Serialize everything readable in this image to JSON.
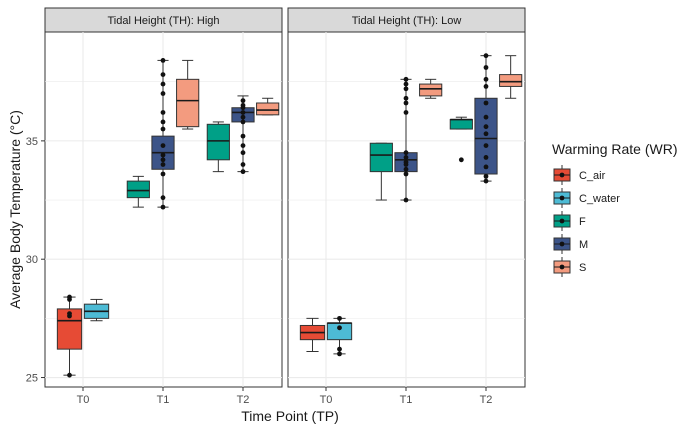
{
  "chart_data": {
    "type": "boxplot",
    "xlabel": "Time Point (TP)",
    "ylabel": "Average Body Temperature (°C)",
    "ylim": [
      24.6,
      39.6
    ],
    "yticks": [
      25,
      30,
      35
    ],
    "categories": [
      "T0",
      "T1",
      "T2"
    ],
    "legend": {
      "title": "Warming Rate (WR)",
      "position": "right",
      "items": [
        {
          "name": "C_air",
          "color": "#E64B35"
        },
        {
          "name": "C_water",
          "color": "#4DBBD5"
        },
        {
          "name": "F",
          "color": "#00A087"
        },
        {
          "name": "M",
          "color": "#3C5488"
        },
        {
          "name": "S",
          "color": "#F39B7F"
        }
      ]
    },
    "panels": [
      {
        "title": "Tidal Height (TH): High",
        "boxes": [
          {
            "category": "T0",
            "group": "C_air",
            "min": 25.1,
            "q1": 26.2,
            "median": 27.4,
            "q3": 27.9,
            "max": 28.4,
            "points": [
              25.1,
              27.6,
              27.7,
              28.3,
              28.4
            ]
          },
          {
            "category": "T0",
            "group": "C_water",
            "min": 27.4,
            "q1": 27.5,
            "median": 27.8,
            "q3": 28.1,
            "max": 28.3,
            "points": []
          },
          {
            "category": "T1",
            "group": "F",
            "min": 32.2,
            "q1": 32.6,
            "median": 32.9,
            "q3": 33.3,
            "max": 33.5,
            "points": []
          },
          {
            "category": "T1",
            "group": "M",
            "min": 32.2,
            "q1": 33.8,
            "median": 34.5,
            "q3": 35.2,
            "max": 38.4,
            "points": [
              32.2,
              32.6,
              33.6,
              34.0,
              34.2,
              34.4,
              34.8,
              35.5,
              35.8,
              36.2,
              37.0,
              37.4,
              37.8,
              38.4
            ]
          },
          {
            "category": "T1",
            "group": "S",
            "min": 35.5,
            "q1": 35.6,
            "median": 36.7,
            "q3": 37.6,
            "max": 38.4,
            "points": []
          },
          {
            "category": "T2",
            "group": "F",
            "min": 33.7,
            "q1": 34.2,
            "median": 35.0,
            "q3": 35.7,
            "max": 35.8,
            "points": []
          },
          {
            "category": "T2",
            "group": "M",
            "min": 33.7,
            "q1": 35.8,
            "median": 36.2,
            "q3": 36.4,
            "max": 36.9,
            "points": [
              33.7,
              34.0,
              34.5,
              34.8,
              35.2,
              35.8,
              36.0,
              36.2,
              36.4,
              36.5,
              36.7
            ]
          },
          {
            "category": "T2",
            "group": "S",
            "min": 36.1,
            "q1": 36.1,
            "median": 36.3,
            "q3": 36.6,
            "max": 36.8,
            "points": []
          }
        ]
      },
      {
        "title": "Tidal Height (TH): Low",
        "boxes": [
          {
            "category": "T0",
            "group": "C_air",
            "min": 26.1,
            "q1": 26.6,
            "median": 26.9,
            "q3": 27.2,
            "max": 27.5,
            "points": []
          },
          {
            "category": "T0",
            "group": "C_water",
            "min": 26.0,
            "q1": 26.6,
            "median": 27.3,
            "q3": 27.3,
            "max": 27.5,
            "points": [
              26.0,
              26.2,
              27.1,
              27.5
            ]
          },
          {
            "category": "T1",
            "group": "F",
            "min": 32.5,
            "q1": 33.7,
            "median": 34.4,
            "q3": 34.9,
            "max": 34.9,
            "points": []
          },
          {
            "category": "T1",
            "group": "M",
            "min": 32.5,
            "q1": 33.7,
            "median": 34.2,
            "q3": 34.5,
            "max": 37.6,
            "points": [
              32.5,
              33.6,
              33.8,
              34.0,
              34.1,
              34.3,
              34.5,
              36.2,
              36.6,
              36.8,
              37.2,
              37.4,
              37.6
            ]
          },
          {
            "category": "T1",
            "group": "S",
            "min": 36.8,
            "q1": 36.9,
            "median": 37.2,
            "q3": 37.4,
            "max": 37.6,
            "points": []
          },
          {
            "category": "T2",
            "group": "F",
            "min": 35.5,
            "q1": 35.5,
            "median": 35.9,
            "q3": 35.9,
            "max": 36.0,
            "points": [
              34.2
            ]
          },
          {
            "category": "T2",
            "group": "M",
            "min": 33.3,
            "q1": 33.6,
            "median": 35.1,
            "q3": 36.8,
            "max": 38.6,
            "points": [
              33.3,
              33.5,
              33.9,
              34.3,
              34.8,
              35.3,
              35.6,
              36.0,
              36.6,
              37.3,
              37.6,
              38.1,
              38.6
            ]
          },
          {
            "category": "T2",
            "group": "S",
            "min": 36.8,
            "q1": 37.3,
            "median": 37.5,
            "q3": 37.8,
            "max": 38.6,
            "points": []
          }
        ]
      }
    ]
  }
}
